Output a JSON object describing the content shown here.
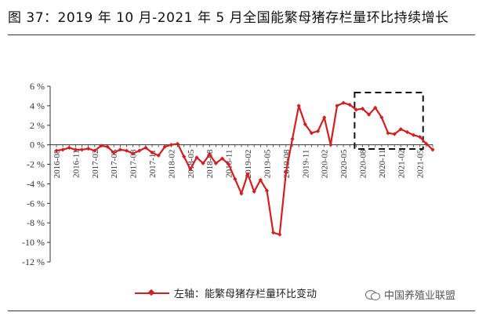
{
  "title": "图  37：2019 年 10 月-2021 年 5 月全国能繁母猪存栏量环比持续增长",
  "watermark": "中国养殖业联盟",
  "colors": {
    "series": "#d11f24",
    "axis": "#333333",
    "highlight_box": "#111111"
  },
  "chart_data": {
    "type": "line",
    "ylim": [
      -12,
      6
    ],
    "y_ticks": [
      6,
      4,
      2,
      0,
      -2,
      -4,
      -6,
      -8,
      -10,
      -12
    ],
    "y_tick_labels": [
      "6 %",
      "4 %",
      "2 %",
      "0 %",
      "-2 %",
      "-4 %",
      "-6 %",
      "-8 %",
      "-10 %",
      "-12 %"
    ],
    "x_tick_labels": [
      "2016-08",
      "2016-11",
      "2017-02",
      "2017-05",
      "2017-08",
      "2017-11",
      "2018-02",
      "2018-05",
      "2018-08",
      "2018-11",
      "2019-02",
      "2019-05",
      "2019-08",
      "2019-11",
      "2020-02",
      "2020-05",
      "2020-08",
      "2020-11",
      "2021-02",
      "2021-05"
    ],
    "x_start": "2016-08",
    "highlight_range": {
      "from": "2020-07",
      "to": "2021-05"
    },
    "series": [
      {
        "name": "左轴：能繁母猪存栏量环比变动",
        "values": [
          -0.6,
          -0.5,
          -0.3,
          -0.5,
          -0.5,
          -0.4,
          -0.6,
          -0.1,
          -0.2,
          -0.8,
          -0.5,
          -0.6,
          -0.9,
          -0.6,
          -0.3,
          -0.8,
          -1.1,
          -0.2,
          0.0,
          0.1,
          -1.2,
          -2.5,
          -1.3,
          -1.9,
          -1.0,
          -1.9,
          -1.4,
          -2.0,
          -3.5,
          -5.0,
          -3.0,
          -4.8,
          -3.6,
          -4.7,
          -9.0,
          -9.2,
          -2.8,
          0.6,
          4.0,
          2.1,
          1.2,
          1.4,
          2.8,
          0.0,
          4.0,
          4.3,
          4.1,
          3.6,
          3.7,
          3.1,
          3.8,
          2.8,
          1.2,
          1.1,
          1.6,
          1.3,
          1.0,
          0.8,
          0.1,
          -0.5
        ]
      }
    ]
  }
}
